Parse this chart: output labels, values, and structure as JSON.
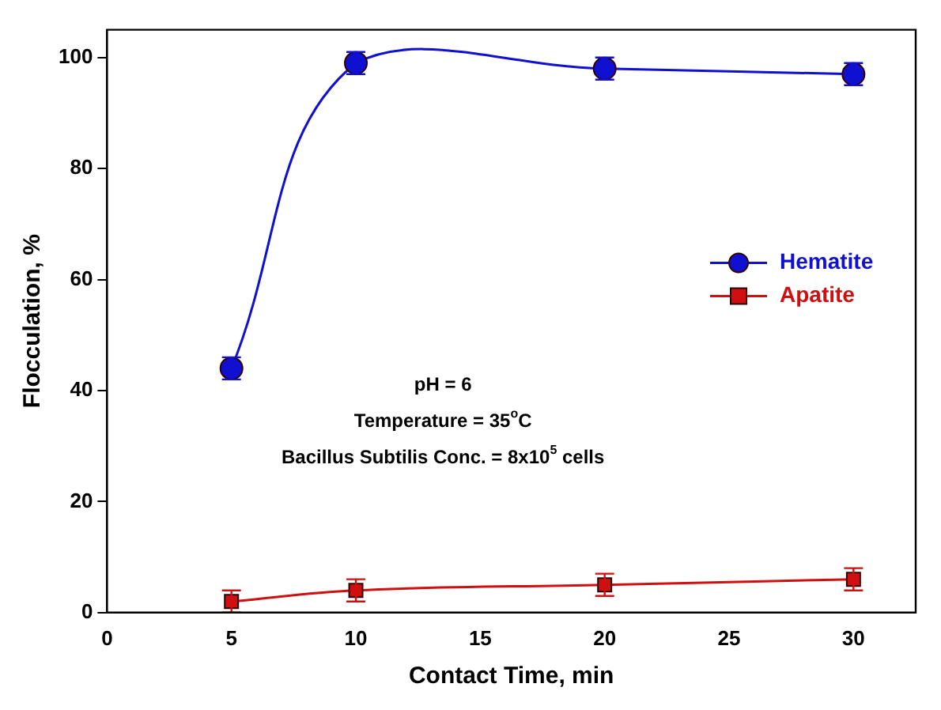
{
  "chart_data": {
    "type": "line",
    "xlabel": "Contact Time, min",
    "ylabel": "Flocculation, %",
    "x": [
      5,
      10,
      20,
      30
    ],
    "series": [
      {
        "name": "Hematite",
        "color": "#1010d0",
        "marker": "circle",
        "values": [
          44,
          99,
          98,
          97
        ],
        "errors": [
          2,
          2,
          2,
          2
        ]
      },
      {
        "name": "Apatite",
        "color": "#d01010",
        "marker": "square",
        "values": [
          2,
          4,
          5,
          6
        ],
        "errors": [
          2,
          2,
          2,
          2
        ]
      }
    ],
    "xlim": [
      0,
      32.5
    ],
    "xticks": [
      0,
      5,
      10,
      15,
      20,
      25,
      30
    ],
    "ylim": [
      0,
      105
    ],
    "yticks": [
      0,
      20,
      40,
      60,
      80,
      100
    ],
    "grid": false,
    "legend": "right",
    "line_style": "solid",
    "annotations": [
      "pH = 6",
      "Temperature = 35$^{o}$C",
      "Bacillus Subtilis Conc. = 8x10$^{5}$ cells"
    ]
  }
}
